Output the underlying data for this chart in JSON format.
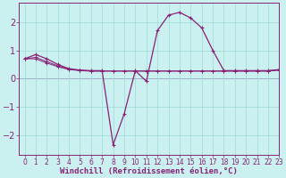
{
  "xlabel": "Windchill (Refroidissement éolien,°C)",
  "background_color": "#caf0f0",
  "grid_color": "#a0d8d8",
  "line_color": "#882277",
  "x_data": [
    0,
    1,
    2,
    3,
    4,
    5,
    6,
    7,
    8,
    9,
    10,
    11,
    12,
    13,
    14,
    15,
    16,
    17,
    18,
    19,
    20,
    21,
    22,
    23
  ],
  "y1_data": [
    0.7,
    0.85,
    0.7,
    0.5,
    0.35,
    0.3,
    0.28,
    0.28,
    -2.35,
    -1.25,
    0.28,
    -0.1,
    1.7,
    2.25,
    2.35,
    2.15,
    1.8,
    1.0,
    0.28,
    0.28,
    0.28,
    0.28,
    0.28,
    0.32
  ],
  "y2_data": [
    0.7,
    0.7,
    0.55,
    0.42,
    0.32,
    0.28,
    0.26,
    0.26,
    0.26,
    0.26,
    0.26,
    0.26,
    0.26,
    0.26,
    0.26,
    0.26,
    0.26,
    0.26,
    0.26,
    0.26,
    0.26,
    0.26,
    0.26,
    0.3
  ],
  "y3_data": [
    0.7,
    0.75,
    0.6,
    0.45,
    0.33,
    0.29,
    0.27,
    0.27,
    0.27,
    0.27,
    0.27,
    0.27,
    0.27,
    0.27,
    0.27,
    0.27,
    0.27,
    0.27,
    0.27,
    0.27,
    0.27,
    0.27,
    0.27,
    0.31
  ],
  "ylim": [
    -2.7,
    2.7
  ],
  "xlim": [
    -0.5,
    23
  ],
  "yticks": [
    -2,
    -1,
    0,
    1,
    2
  ],
  "xticks": [
    0,
    1,
    2,
    3,
    4,
    5,
    6,
    7,
    8,
    9,
    10,
    11,
    12,
    13,
    14,
    15,
    16,
    17,
    18,
    19,
    20,
    21,
    22,
    23
  ],
  "xlabel_fontsize": 6.5,
  "ytick_fontsize": 7,
  "xtick_fontsize": 5.5
}
